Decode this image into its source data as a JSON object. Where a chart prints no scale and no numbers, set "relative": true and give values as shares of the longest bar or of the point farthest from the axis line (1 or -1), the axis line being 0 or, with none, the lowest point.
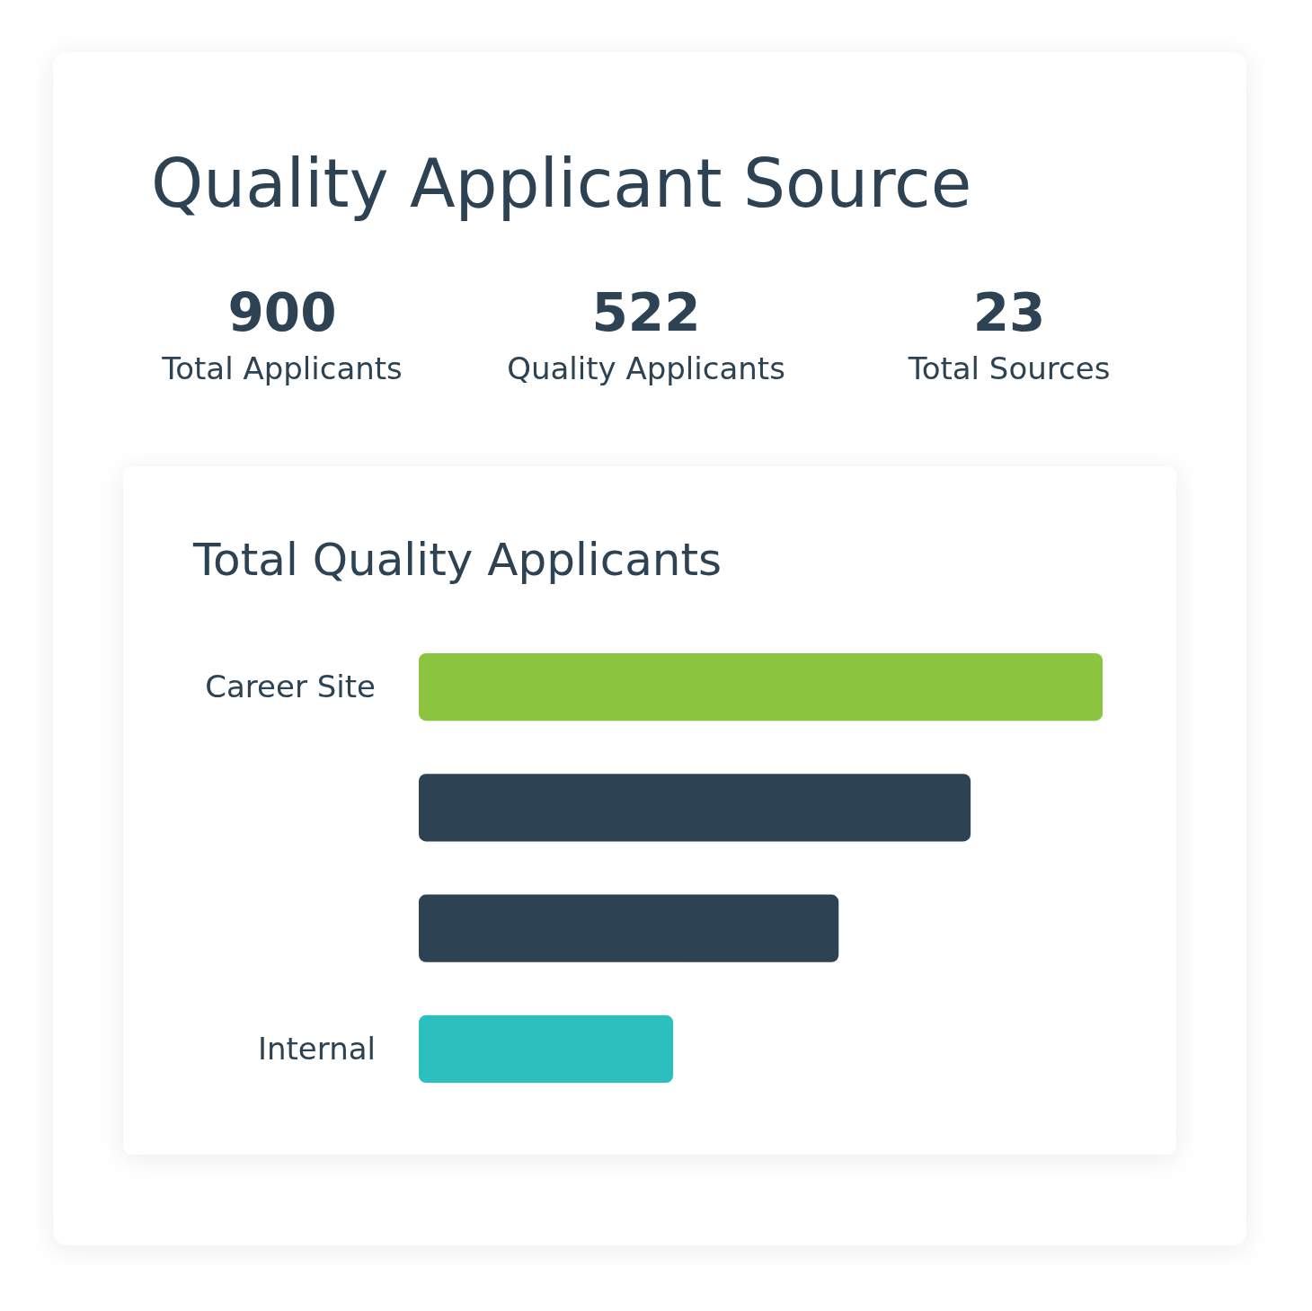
{
  "chart_data": [
    {
      "type": "other",
      "title": "Quality Applicant Source",
      "categories": [
        "Total Applicants",
        "Quality Applicants",
        "Total Sources"
      ],
      "values": [
        900,
        522,
        23
      ],
      "data_labels": true
    },
    {
      "type": "bar",
      "orientation": "horizontal",
      "relative": true,
      "title": "Total Quality Applicants",
      "categories": [
        "Career Site",
        null,
        null,
        "Internal"
      ],
      "values": [
        1,
        0.807,
        0.614,
        0.372
      ],
      "colors": [
        "#8bc540",
        "#2d4353",
        "#2d4353",
        "#2bbfbd"
      ]
    }
  ]
}
